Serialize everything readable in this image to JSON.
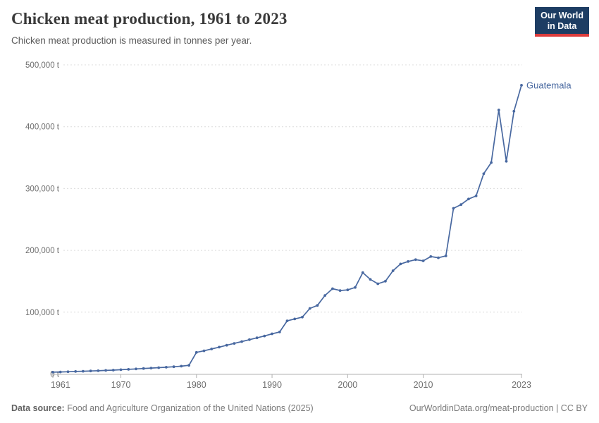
{
  "header": {
    "title": "Chicken meat production, 1961 to 2023",
    "subtitle": "Chicken meat production is measured in tonnes per year.",
    "logo": {
      "line1": "Our World",
      "line2": "in Data",
      "bg_color": "#1d3d63",
      "accent_color": "#dc3c3c"
    }
  },
  "chart_data": {
    "type": "line",
    "title": "Chicken meat production, 1961 to 2023",
    "ylabel": "tonnes per year",
    "xlabel": "",
    "xlim": [
      1961,
      2023
    ],
    "ylim": [
      0,
      500000
    ],
    "grid": "horizontal-dashed",
    "legend_position": "end-of-line-label",
    "x_ticks": [
      "1961",
      "1970",
      "1980",
      "1990",
      "2000",
      "2010",
      "2023"
    ],
    "y_ticks": [
      {
        "value": 100000,
        "label": "100,000 t"
      },
      {
        "value": 200000,
        "label": "200,000 t"
      },
      {
        "value": 300000,
        "label": "300,000 t"
      },
      {
        "value": 400000,
        "label": "400,000 t"
      },
      {
        "value": 500000,
        "label": "500,000 t"
      }
    ],
    "y_zero_label": "0 t",
    "series": [
      {
        "name": "Guatemala",
        "color": "#4868a0",
        "x": [
          1961,
          1962,
          1963,
          1964,
          1965,
          1966,
          1967,
          1968,
          1969,
          1970,
          1971,
          1972,
          1973,
          1974,
          1975,
          1976,
          1977,
          1978,
          1979,
          1980,
          1981,
          1982,
          1983,
          1984,
          1985,
          1986,
          1987,
          1988,
          1989,
          1990,
          1991,
          1992,
          1993,
          1994,
          1995,
          1996,
          1997,
          1998,
          1999,
          2000,
          2001,
          2002,
          2003,
          2004,
          2005,
          2006,
          2007,
          2008,
          2009,
          2010,
          2011,
          2012,
          2013,
          2014,
          2015,
          2016,
          2017,
          2018,
          2019,
          2020,
          2021,
          2022,
          2023
        ],
        "values": [
          3000,
          3300,
          3700,
          4100,
          4500,
          4900,
          5300,
          5800,
          6300,
          6900,
          7500,
          8200,
          8900,
          9600,
          10300,
          11000,
          11800,
          12600,
          14000,
          35000,
          37500,
          40500,
          43500,
          46500,
          49500,
          52500,
          55500,
          58500,
          61500,
          65000,
          68000,
          86000,
          89000,
          92000,
          106000,
          111000,
          127000,
          138000,
          135000,
          136000,
          140000,
          164000,
          153000,
          146000,
          150000,
          167000,
          178000,
          182000,
          185000,
          183000,
          190000,
          188000,
          191000,
          268000,
          274000,
          283000,
          288000,
          324000,
          342000,
          427000,
          344000,
          425000,
          467000
        ]
      }
    ]
  },
  "footer": {
    "source_label": "Data source:",
    "source_text": " Food and Agriculture Organization of the United Nations (2025)",
    "link_text": "OurWorldinData.org/meat-production | CC BY"
  },
  "colors": {
    "gridline": "#dcdcdc",
    "axis": "#b0b0b0",
    "tick_label": "#6e6e6e",
    "title": "#3a3a3a",
    "subtitle": "#5b5b5b"
  }
}
